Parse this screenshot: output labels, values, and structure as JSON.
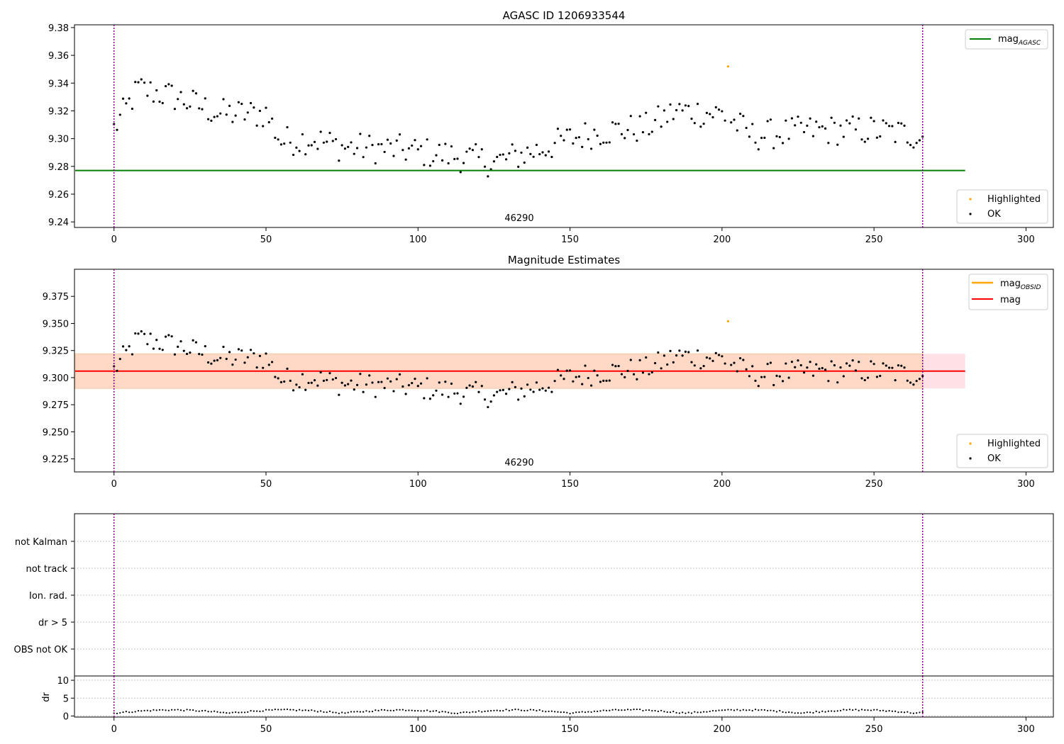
{
  "colors": {
    "ok": "#000000",
    "highlighted": "#ffa500",
    "mag_agasc": "#008000",
    "mag_obsid": "#ffa500",
    "mag": "#ff0000",
    "band_outer": "#ffe0e6",
    "band_inner": "#ffd9c6",
    "vline": "#800080"
  },
  "chart_data": [
    {
      "type": "scatter",
      "title": "AGASC ID 1206933544",
      "xlim": [
        -13,
        309
      ],
      "ylim": [
        9.236,
        9.382
      ],
      "x_ticks": [
        0,
        50,
        100,
        150,
        200,
        250,
        300
      ],
      "y_ticks": [
        9.24,
        9.26,
        9.28,
        9.3,
        9.32,
        9.34,
        9.36,
        9.38
      ],
      "y_tick_labels": [
        "9.24",
        "9.26",
        "9.28",
        "9.30",
        "9.32",
        "9.34",
        "9.36",
        "9.38"
      ],
      "annotation": "46290",
      "mag_agasc": 9.277,
      "mag_line_x": [
        0,
        280
      ],
      "vlines": [
        0,
        266
      ],
      "highlighted_points": [
        [
          202,
          9.352
        ]
      ],
      "legend_lines": [
        "mag",
        "AGASC"
      ],
      "legend_points": [
        "Highlighted",
        "OK"
      ],
      "series": [
        {
          "name": "OK"
        },
        {
          "name": "Highlighted"
        }
      ]
    },
    {
      "type": "scatter",
      "title": "Magnitude Estimates",
      "xlim": [
        -13,
        309
      ],
      "ylim": [
        9.213,
        9.4
      ],
      "x_ticks": [
        0,
        50,
        100,
        150,
        200,
        250,
        300
      ],
      "y_ticks": [
        9.225,
        9.25,
        9.275,
        9.3,
        9.325,
        9.35,
        9.375
      ],
      "y_tick_labels": [
        "9.225",
        "9.250",
        "9.275",
        "9.300",
        "9.325",
        "9.350",
        "9.375"
      ],
      "annotation": "46290",
      "mag": 9.306,
      "mag_band": [
        9.29,
        9.322
      ],
      "band_x": [
        0,
        280
      ],
      "vlines": [
        0,
        266
      ],
      "highlighted_points": [
        [
          202,
          9.352
        ]
      ],
      "legend_lines": [
        "mag",
        "OBSID",
        "mag"
      ],
      "legend_points": [
        "Highlighted",
        "OK"
      ]
    },
    {
      "type": "scatter",
      "title": "",
      "categories": [
        "not Kalman",
        "not track",
        "Ion. rad.",
        "dr > 5",
        "OBS not OK"
      ],
      "xlim": [
        -13,
        309
      ],
      "vlines": [
        0,
        266
      ]
    },
    {
      "type": "scatter",
      "title": "",
      "ylabel": "dr",
      "xlim": [
        -13,
        309
      ],
      "ylim": [
        -0.3,
        11.2
      ],
      "x_ticks": [
        0,
        50,
        100,
        150,
        200,
        250,
        300
      ],
      "y_ticks": [
        0,
        5,
        10
      ],
      "y_tick_labels": [
        "0",
        "5",
        "10"
      ],
      "vlines": [
        0,
        266
      ]
    }
  ]
}
